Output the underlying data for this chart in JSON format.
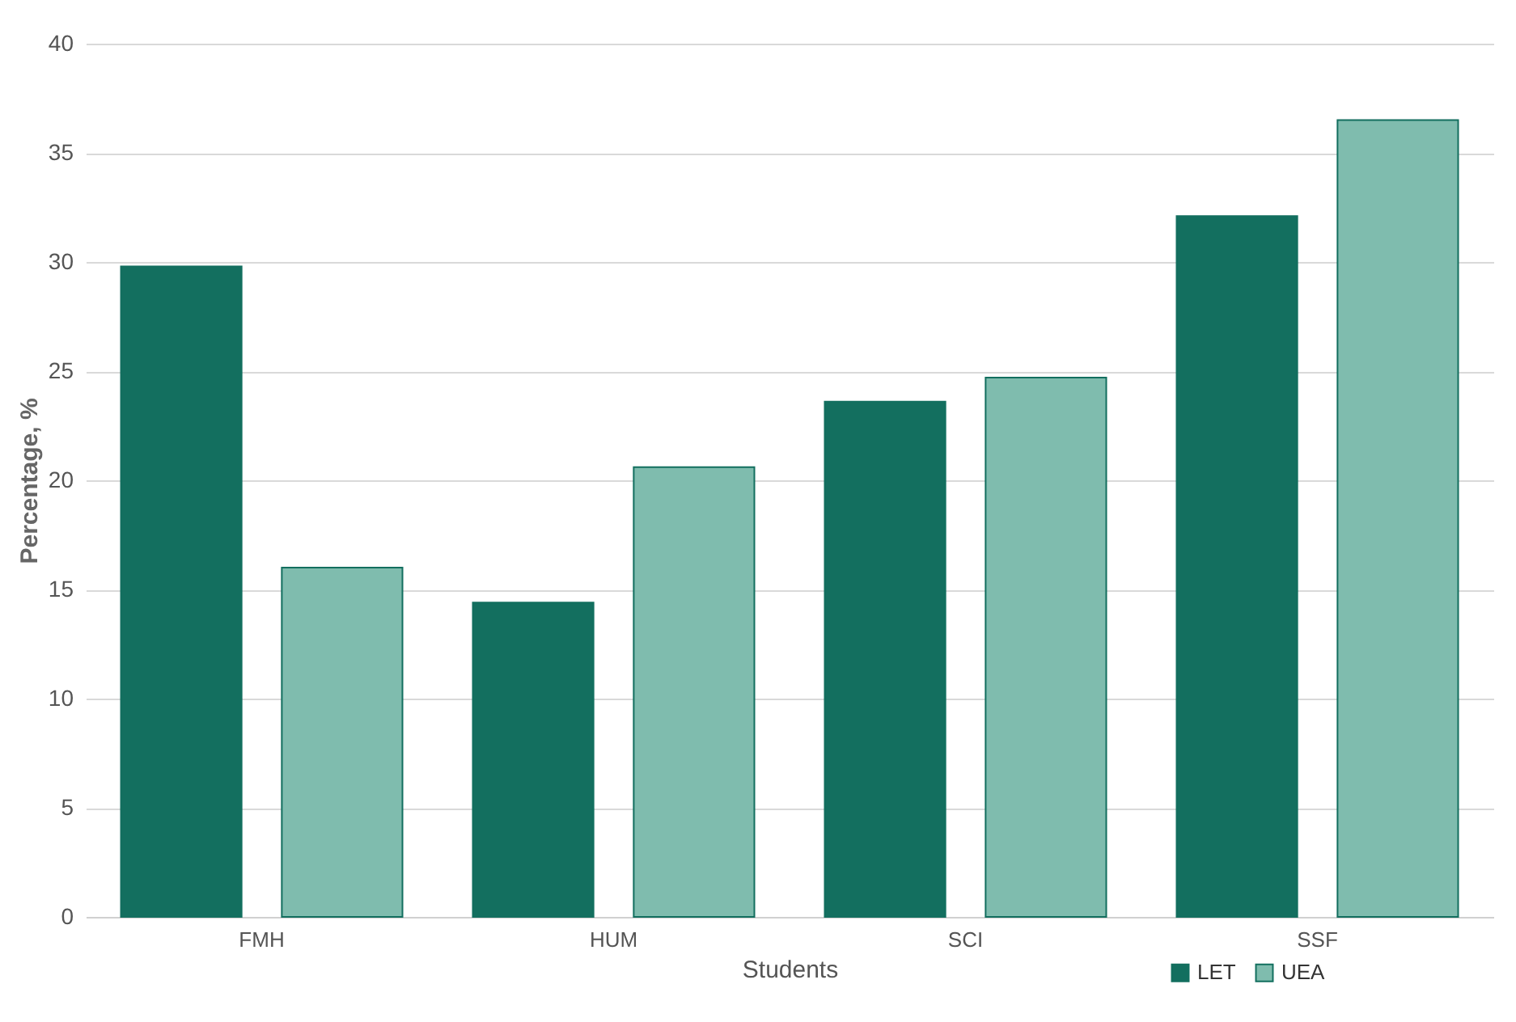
{
  "chart_data": {
    "type": "bar",
    "xlabel": "Students",
    "ylabel": "Percentage, %",
    "categories": [
      "FMH",
      "HUM",
      "SCI",
      "SSF"
    ],
    "series": [
      {
        "name": "LET",
        "color": "#136f5f",
        "values": [
          29.8,
          14.4,
          23.6,
          32.1
        ]
      },
      {
        "name": "UEA",
        "color": "#7fbcae",
        "values": [
          16.0,
          20.6,
          24.7,
          36.5
        ]
      }
    ],
    "ylim": [
      0,
      40
    ],
    "yticks": [
      0,
      5,
      10,
      15,
      20,
      25,
      30,
      35,
      40
    ],
    "grid": "y",
    "legend": "bottom right"
  }
}
